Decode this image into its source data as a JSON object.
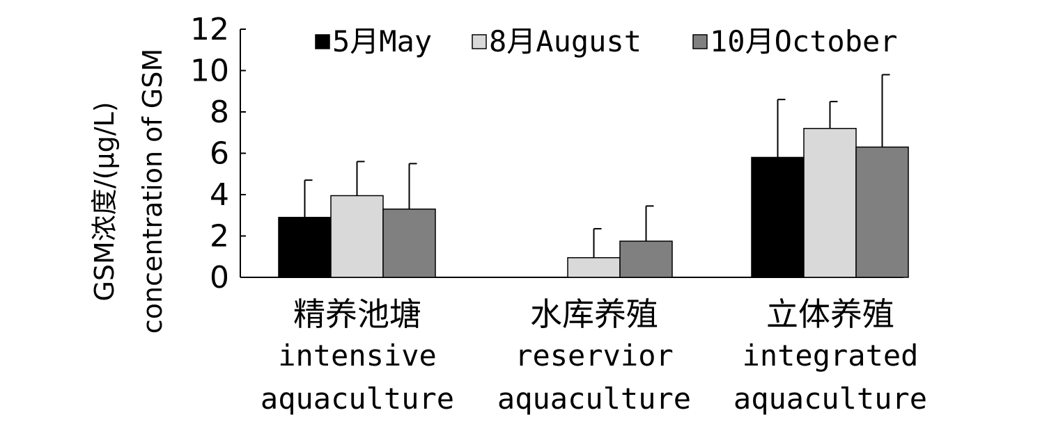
{
  "chart_data": {
    "type": "bar",
    "title": "",
    "ylabel": "GSM浓度/(μg/L)",
    "ylabel_en": "concentration of GSM",
    "ylim": [
      0,
      12
    ],
    "yticks": [
      0,
      2,
      4,
      6,
      8,
      10,
      12
    ],
    "ytick_labels": [
      "0",
      "2",
      "4",
      "6",
      "8",
      "10",
      "12"
    ],
    "grid": false,
    "legend_position": "top",
    "categories": [
      {
        "cn": "精养池塘",
        "en": [
          "intensive",
          "aquaculture"
        ]
      },
      {
        "cn": "水库养殖",
        "en": [
          "reservior",
          "aquaculture"
        ]
      },
      {
        "cn": "立体养殖",
        "en": [
          "integrated",
          "aquaculture"
        ]
      }
    ],
    "series": [
      {
        "name": "5月May",
        "color": "#000000",
        "values": [
          2.9,
          0,
          5.8
        ],
        "errors": [
          1.8,
          0,
          2.8
        ]
      },
      {
        "name": "8月August",
        "color": "#d9d9d9",
        "values": [
          3.95,
          0.95,
          7.2
        ],
        "errors": [
          1.65,
          1.4,
          1.3
        ]
      },
      {
        "name": "10月October",
        "color": "#808080",
        "values": [
          3.3,
          1.75,
          6.3
        ],
        "errors": [
          2.2,
          1.7,
          3.5
        ]
      }
    ]
  }
}
